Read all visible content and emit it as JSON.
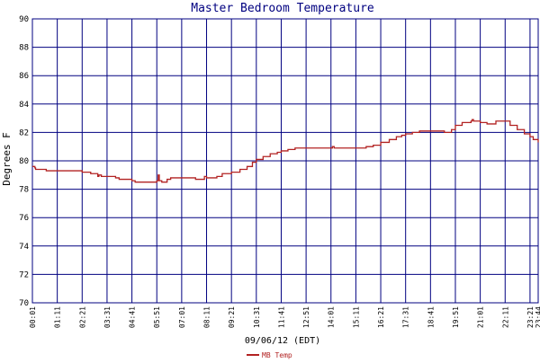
{
  "chart_data": {
    "type": "line",
    "title": "Master Bedroom Temperature",
    "xlabel": "09/06/12 (EDT)",
    "ylabel": "Degrees F",
    "ylim": [
      70,
      90
    ],
    "y_ticks": [
      70,
      72,
      74,
      76,
      78,
      80,
      82,
      84,
      86,
      88,
      90
    ],
    "x_range": [
      "00:01",
      "23:44"
    ],
    "x_tick_labels": [
      "00:01",
      "01:11",
      "02:21",
      "03:31",
      "04:41",
      "05:51",
      "07:01",
      "08:11",
      "09:21",
      "10:31",
      "11:41",
      "12:51",
      "14:01",
      "15:11",
      "16:21",
      "17:31",
      "18:41",
      "19:51",
      "21:01",
      "22:11",
      "23:21",
      "23:44"
    ],
    "grid": true,
    "legend_position": "bottom",
    "colors": {
      "line": "#b22222",
      "grid": "#000080",
      "axis_text": "#000000",
      "title_text": "#000080",
      "legend_text": "#b22222"
    },
    "series": [
      {
        "name": "MB Temp",
        "points": [
          [
            "00:01",
            79.6
          ],
          [
            "00:05",
            79.6
          ],
          [
            "00:08",
            79.5
          ],
          [
            "00:10",
            79.4
          ],
          [
            "00:20",
            79.4
          ],
          [
            "00:40",
            79.3
          ],
          [
            "01:11",
            79.3
          ],
          [
            "01:40",
            79.3
          ],
          [
            "02:05",
            79.3
          ],
          [
            "02:21",
            79.2
          ],
          [
            "02:45",
            79.1
          ],
          [
            "03:00",
            79.1
          ],
          [
            "03:05",
            78.9
          ],
          [
            "03:08",
            79.0
          ],
          [
            "03:15",
            78.9
          ],
          [
            "03:31",
            78.9
          ],
          [
            "03:55",
            78.8
          ],
          [
            "04:05",
            78.7
          ],
          [
            "04:41",
            78.6
          ],
          [
            "04:50",
            78.5
          ],
          [
            "05:20",
            78.5
          ],
          [
            "05:45",
            78.5
          ],
          [
            "05:51",
            78.6
          ],
          [
            "05:55",
            79.0
          ],
          [
            "05:58",
            78.6
          ],
          [
            "06:05",
            78.5
          ],
          [
            "06:20",
            78.7
          ],
          [
            "06:30",
            78.8
          ],
          [
            "07:01",
            78.8
          ],
          [
            "07:30",
            78.8
          ],
          [
            "07:40",
            78.7
          ],
          [
            "08:00",
            78.7
          ],
          [
            "08:05",
            78.9
          ],
          [
            "08:11",
            78.8
          ],
          [
            "08:40",
            78.9
          ],
          [
            "08:55",
            79.1
          ],
          [
            "09:21",
            79.2
          ],
          [
            "09:45",
            79.4
          ],
          [
            "10:05",
            79.6
          ],
          [
            "10:20",
            79.9
          ],
          [
            "10:31",
            80.1
          ],
          [
            "10:50",
            80.3
          ],
          [
            "11:10",
            80.5
          ],
          [
            "11:30",
            80.6
          ],
          [
            "11:41",
            80.7
          ],
          [
            "12:00",
            80.8
          ],
          [
            "12:20",
            80.9
          ],
          [
            "12:51",
            80.9
          ],
          [
            "13:20",
            80.9
          ],
          [
            "13:45",
            80.9
          ],
          [
            "14:01",
            80.9
          ],
          [
            "14:05",
            81.0
          ],
          [
            "14:10",
            80.9
          ],
          [
            "14:40",
            80.9
          ],
          [
            "15:11",
            80.9
          ],
          [
            "15:40",
            81.0
          ],
          [
            "16:00",
            81.1
          ],
          [
            "16:21",
            81.3
          ],
          [
            "16:45",
            81.5
          ],
          [
            "17:05",
            81.7
          ],
          [
            "17:20",
            81.8
          ],
          [
            "17:31",
            81.9
          ],
          [
            "17:50",
            82.0
          ],
          [
            "18:10",
            82.1
          ],
          [
            "18:41",
            82.1
          ],
          [
            "19:00",
            82.1
          ],
          [
            "19:20",
            82.0
          ],
          [
            "19:40",
            82.2
          ],
          [
            "19:51",
            82.5
          ],
          [
            "20:10",
            82.7
          ],
          [
            "20:20",
            82.7
          ],
          [
            "20:35",
            82.8
          ],
          [
            "20:38",
            82.9
          ],
          [
            "20:42",
            82.8
          ],
          [
            "21:01",
            82.7
          ],
          [
            "21:20",
            82.6
          ],
          [
            "21:35",
            82.6
          ],
          [
            "21:45",
            82.8
          ],
          [
            "22:11",
            82.8
          ],
          [
            "22:25",
            82.5
          ],
          [
            "22:45",
            82.2
          ],
          [
            "23:05",
            81.9
          ],
          [
            "23:21",
            81.7
          ],
          [
            "23:30",
            81.5
          ],
          [
            "23:44",
            81.3
          ]
        ]
      }
    ]
  }
}
